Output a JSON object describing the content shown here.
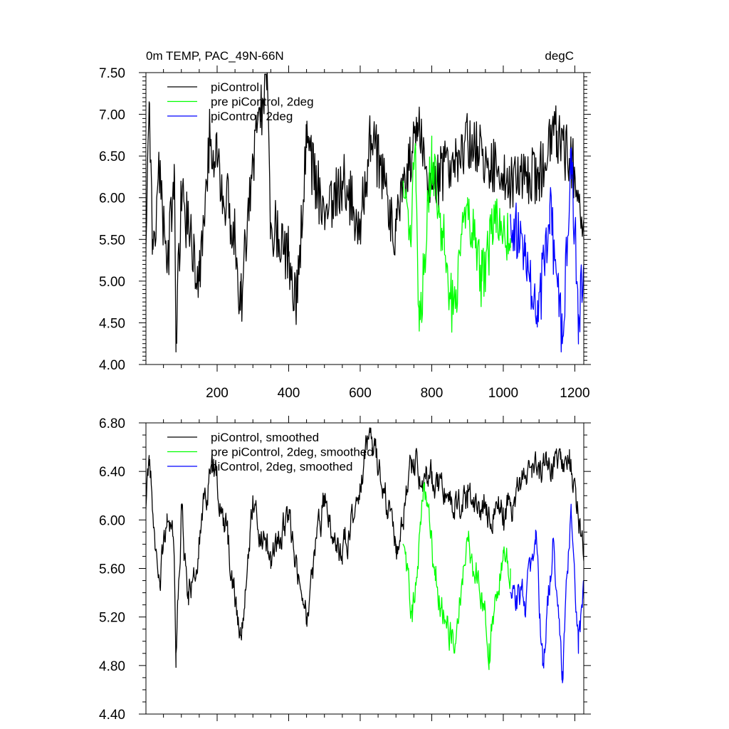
{
  "chart_data": [
    {
      "type": "line",
      "title": "0m TEMP, PAC_49N-66N",
      "units_label": "degC",
      "xlim": [
        1,
        1225
      ],
      "ylim": [
        4.0,
        7.5
      ],
      "x_ticks": [
        200,
        400,
        600,
        800,
        1000,
        1200
      ],
      "x_tick_labels": [
        "200",
        "400",
        "600",
        "800",
        "1000",
        "1200"
      ],
      "y_ticks": [
        4.0,
        4.5,
        5.0,
        5.5,
        6.0,
        6.5,
        7.0,
        7.5
      ],
      "y_tick_labels": [
        "4.00",
        "4.50",
        "5.00",
        "5.50",
        "6.00",
        "6.50",
        "7.00",
        "7.50"
      ],
      "grid": false,
      "legend_position": "top-left",
      "series": [
        {
          "name": "piControl",
          "color": "#000000",
          "x_range": [
            1,
            1225
          ],
          "sample_points": [
            [
              1,
              5.4
            ],
            [
              10,
              7.15
            ],
            [
              20,
              5.5
            ],
            [
              40,
              6.3
            ],
            [
              60,
              5.1
            ],
            [
              80,
              6.4
            ],
            [
              85,
              4.25
            ],
            [
              100,
              6.0
            ],
            [
              150,
              5.0
            ],
            [
              180,
              6.8
            ],
            [
              200,
              6.4
            ],
            [
              250,
              5.6
            ],
            [
              265,
              4.65
            ],
            [
              300,
              6.5
            ],
            [
              340,
              7.5
            ],
            [
              350,
              5.7
            ],
            [
              400,
              5.3
            ],
            [
              420,
              4.65
            ],
            [
              450,
              6.6
            ],
            [
              500,
              5.8
            ],
            [
              550,
              6.2
            ],
            [
              600,
              5.7
            ],
            [
              630,
              6.75
            ],
            [
              700,
              5.6
            ],
            [
              760,
              6.9
            ],
            [
              800,
              6.1
            ],
            [
              900,
              6.7
            ],
            [
              1000,
              6.2
            ],
            [
              1100,
              6.3
            ],
            [
              1150,
              6.8
            ],
            [
              1200,
              6.3
            ],
            [
              1225,
              5.5
            ]
          ]
        },
        {
          "name": "pre piControl, 2deg",
          "color": "#00ff00",
          "x_range": [
            720,
            1020
          ],
          "sample_points": [
            [
              720,
              6.2
            ],
            [
              740,
              5.5
            ],
            [
              755,
              6.6
            ],
            [
              765,
              4.4
            ],
            [
              800,
              6.5
            ],
            [
              830,
              5.6
            ],
            [
              860,
              4.6
            ],
            [
              900,
              6.0
            ],
            [
              940,
              5.0
            ],
            [
              980,
              5.8
            ],
            [
              1020,
              5.4
            ]
          ]
        },
        {
          "name": "piControl, 2deg",
          "color": "#0000ff",
          "x_range": [
            1020,
            1225
          ],
          "sample_points": [
            [
              1020,
              5.8
            ],
            [
              1060,
              5.3
            ],
            [
              1095,
              4.45
            ],
            [
              1130,
              5.9
            ],
            [
              1165,
              4.25
            ],
            [
              1190,
              6.6
            ],
            [
              1210,
              4.6
            ],
            [
              1225,
              5.2
            ]
          ]
        }
      ]
    },
    {
      "type": "line",
      "xlim": [
        1,
        1225
      ],
      "ylim": [
        4.4,
        6.8
      ],
      "x_ticks": [
        200,
        400,
        600,
        800,
        1000,
        1200
      ],
      "y_ticks": [
        4.4,
        4.8,
        5.2,
        5.6,
        6.0,
        6.4,
        6.8
      ],
      "y_tick_labels": [
        "4.40",
        "4.80",
        "5.20",
        "5.60",
        "6.00",
        "6.40",
        "6.80"
      ],
      "grid": false,
      "legend_position": "top-left",
      "series": [
        {
          "name": "piControl, smoothed",
          "color": "#000000",
          "x_range": [
            1,
            1225
          ],
          "sample_points": [
            [
              1,
              6.1
            ],
            [
              10,
              6.45
            ],
            [
              40,
              5.45
            ],
            [
              60,
              6.05
            ],
            [
              80,
              5.7
            ],
            [
              85,
              4.9
            ],
            [
              100,
              6.08
            ],
            [
              120,
              5.3
            ],
            [
              150,
              5.85
            ],
            [
              190,
              6.5
            ],
            [
              230,
              5.8
            ],
            [
              265,
              5.05
            ],
            [
              300,
              6.2
            ],
            [
              350,
              5.6
            ],
            [
              400,
              6.0
            ],
            [
              450,
              5.2
            ],
            [
              500,
              6.2
            ],
            [
              550,
              5.7
            ],
            [
              630,
              6.72
            ],
            [
              700,
              5.8
            ],
            [
              750,
              6.5
            ],
            [
              800,
              6.3
            ],
            [
              900,
              6.1
            ],
            [
              1000,
              6.1
            ],
            [
              1080,
              6.35
            ],
            [
              1160,
              6.5
            ],
            [
              1185,
              6.58
            ],
            [
              1225,
              5.7
            ]
          ]
        },
        {
          "name": "pre piControl, 2deg, smoothed",
          "color": "#00ff00",
          "x_range": [
            720,
            1020
          ],
          "sample_points": [
            [
              720,
              5.8
            ],
            [
              745,
              5.3
            ],
            [
              780,
              6.25
            ],
            [
              810,
              5.5
            ],
            [
              860,
              4.98
            ],
            [
              900,
              5.85
            ],
            [
              940,
              5.4
            ],
            [
              960,
              4.98
            ],
            [
              1000,
              5.75
            ],
            [
              1020,
              5.6
            ]
          ]
        },
        {
          "name": "piControl, 2deg, smoothed",
          "color": "#0000ff",
          "x_range": [
            1020,
            1225
          ],
          "sample_points": [
            [
              1020,
              5.4
            ],
            [
              1060,
              5.3
            ],
            [
              1090,
              5.8
            ],
            [
              1110,
              4.8
            ],
            [
              1140,
              5.85
            ],
            [
              1165,
              4.75
            ],
            [
              1190,
              6.05
            ],
            [
              1210,
              4.9
            ],
            [
              1225,
              5.35
            ]
          ]
        }
      ]
    }
  ]
}
